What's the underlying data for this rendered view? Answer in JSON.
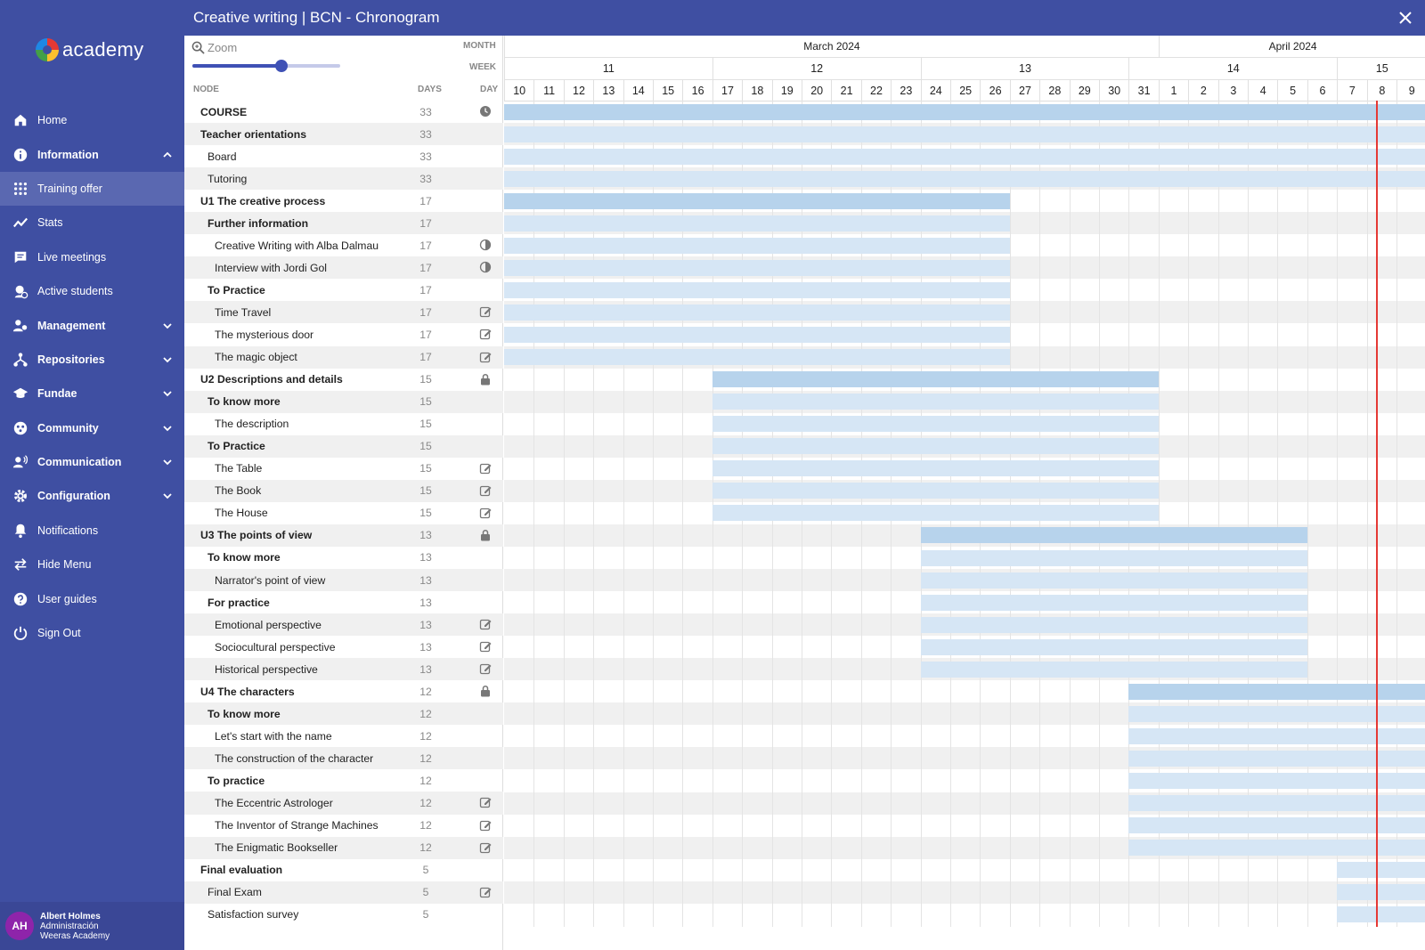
{
  "window": {
    "title": "Creative writing | BCN - Chronogram",
    "close_icon": "close-icon"
  },
  "brand": {
    "name": "academy"
  },
  "sidebar": {
    "items": [
      {
        "label": "Home",
        "icon": "home-icon",
        "bold": false,
        "chevron": ""
      },
      {
        "label": "Information",
        "icon": "info-icon",
        "bold": true,
        "chevron": "up"
      },
      {
        "label": "Training offer",
        "icon": "grid-icon",
        "bold": false,
        "chevron": "",
        "active": true
      },
      {
        "label": "Stats",
        "icon": "chart-icon",
        "bold": false,
        "chevron": ""
      },
      {
        "label": "Live meetings",
        "icon": "chat-icon",
        "bold": false,
        "chevron": ""
      },
      {
        "label": "Active students",
        "icon": "student-icon",
        "bold": false,
        "chevron": ""
      },
      {
        "label": "Management",
        "icon": "people-icon",
        "bold": true,
        "chevron": "down"
      },
      {
        "label": "Repositories",
        "icon": "tree-icon",
        "bold": true,
        "chevron": "down"
      },
      {
        "label": "Fundae",
        "icon": "cap-icon",
        "bold": true,
        "chevron": "down"
      },
      {
        "label": "Community",
        "icon": "community-icon",
        "bold": true,
        "chevron": "down"
      },
      {
        "label": "Communication",
        "icon": "communication-icon",
        "bold": true,
        "chevron": "down"
      },
      {
        "label": "Configuration",
        "icon": "gear-icon",
        "bold": true,
        "chevron": "down"
      },
      {
        "label": "Notifications",
        "icon": "bell-icon",
        "bold": false,
        "chevron": ""
      },
      {
        "label": "Hide Menu",
        "icon": "arrows-icon",
        "bold": false,
        "chevron": ""
      },
      {
        "label": "User guides",
        "icon": "help-icon",
        "bold": false,
        "chevron": ""
      },
      {
        "label": "Sign Out",
        "icon": "power-icon",
        "bold": false,
        "chevron": ""
      }
    ]
  },
  "user": {
    "initials": "AH",
    "name": "Albert Holmes",
    "role": "Administración",
    "org": "Weeras Academy"
  },
  "controls": {
    "zoom_label": "Zoom",
    "zoom_level": 0.6,
    "month_label": "MONTH",
    "week_label": "WEEK",
    "day_label": "DAY",
    "node_label": "NODE",
    "days_label": "DAYS"
  },
  "timeline": {
    "months": [
      {
        "label": "March 2024",
        "days": 22
      },
      {
        "label": "April 2024",
        "days": 9
      }
    ],
    "weeks": [
      {
        "label": "11",
        "days": 7
      },
      {
        "label": "12",
        "days": 7
      },
      {
        "label": "13",
        "days": 7
      },
      {
        "label": "14",
        "days": 7
      },
      {
        "label": "15",
        "days": 3
      }
    ],
    "days": [
      "10",
      "11",
      "12",
      "13",
      "14",
      "15",
      "16",
      "17",
      "18",
      "19",
      "20",
      "21",
      "22",
      "23",
      "24",
      "25",
      "26",
      "27",
      "28",
      "29",
      "30",
      "31",
      "1",
      "2",
      "3",
      "4",
      "5",
      "6",
      "7",
      "8",
      "9"
    ],
    "today": "2024-04-08"
  },
  "rows": [
    {
      "name": "COURSE",
      "days": "33",
      "level": 0,
      "bold": true,
      "icon": "clock-icon",
      "start": "2024-03-10",
      "end": "2024-04-11",
      "main": true
    },
    {
      "name": "Teacher orientations",
      "days": "33",
      "level": 0,
      "bold": true,
      "icon": "",
      "start": "2024-03-10",
      "end": "2024-04-11",
      "main": false
    },
    {
      "name": "Board",
      "days": "33",
      "level": 1,
      "bold": false,
      "icon": "",
      "start": "2024-03-10",
      "end": "2024-04-11",
      "main": false
    },
    {
      "name": "Tutoring",
      "days": "33",
      "level": 1,
      "bold": false,
      "icon": "",
      "start": "2024-03-10",
      "end": "2024-04-11",
      "main": false
    },
    {
      "name": "U1 The creative process",
      "days": "17",
      "level": 0,
      "bold": true,
      "icon": "",
      "start": "2024-03-10",
      "end": "2024-03-26",
      "main": true
    },
    {
      "name": "Further information",
      "days": "17",
      "level": 1,
      "bold": true,
      "icon": "",
      "start": "2024-03-10",
      "end": "2024-03-26",
      "main": false
    },
    {
      "name": "Creative Writing with Alba Dalmau",
      "days": "17",
      "level": 2,
      "bold": false,
      "icon": "progress-icon",
      "start": "2024-03-10",
      "end": "2024-03-26",
      "main": false
    },
    {
      "name": "Interview with Jordi Gol",
      "days": "17",
      "level": 2,
      "bold": false,
      "icon": "progress-icon",
      "start": "2024-03-10",
      "end": "2024-03-26",
      "main": false
    },
    {
      "name": "To Practice",
      "days": "17",
      "level": 1,
      "bold": true,
      "icon": "",
      "start": "2024-03-10",
      "end": "2024-03-26",
      "main": false
    },
    {
      "name": "Time Travel",
      "days": "17",
      "level": 2,
      "bold": false,
      "icon": "edit-icon",
      "start": "2024-03-10",
      "end": "2024-03-26",
      "main": false
    },
    {
      "name": "The mysterious door",
      "days": "17",
      "level": 2,
      "bold": false,
      "icon": "edit-icon",
      "start": "2024-03-10",
      "end": "2024-03-26",
      "main": false
    },
    {
      "name": "The magic object",
      "days": "17",
      "level": 2,
      "bold": false,
      "icon": "edit-icon",
      "start": "2024-03-10",
      "end": "2024-03-26",
      "main": false
    },
    {
      "name": "U2 Descriptions and details",
      "days": "15",
      "level": 0,
      "bold": true,
      "icon": "lock-icon",
      "start": "2024-03-17",
      "end": "2024-03-31",
      "main": true
    },
    {
      "name": "To know more",
      "days": "15",
      "level": 1,
      "bold": true,
      "icon": "",
      "start": "2024-03-17",
      "end": "2024-03-31",
      "main": false
    },
    {
      "name": "The description",
      "days": "15",
      "level": 2,
      "bold": false,
      "icon": "",
      "start": "2024-03-17",
      "end": "2024-03-31",
      "main": false
    },
    {
      "name": "To Practice",
      "days": "15",
      "level": 1,
      "bold": true,
      "icon": "",
      "start": "2024-03-17",
      "end": "2024-03-31",
      "main": false
    },
    {
      "name": "The Table",
      "days": "15",
      "level": 2,
      "bold": false,
      "icon": "edit-icon",
      "start": "2024-03-17",
      "end": "2024-03-31",
      "main": false
    },
    {
      "name": "The Book",
      "days": "15",
      "level": 2,
      "bold": false,
      "icon": "edit-icon",
      "start": "2024-03-17",
      "end": "2024-03-31",
      "main": false
    },
    {
      "name": "The House",
      "days": "15",
      "level": 2,
      "bold": false,
      "icon": "edit-icon",
      "start": "2024-03-17",
      "end": "2024-03-31",
      "main": false
    },
    {
      "name": "U3 The points of view",
      "days": "13",
      "level": 0,
      "bold": true,
      "icon": "lock-icon",
      "start": "2024-03-24",
      "end": "2024-04-05",
      "main": true
    },
    {
      "name": "To know more",
      "days": "13",
      "level": 1,
      "bold": true,
      "icon": "",
      "start": "2024-03-24",
      "end": "2024-04-05",
      "main": false
    },
    {
      "name": "Narrator's point of view",
      "days": "13",
      "level": 2,
      "bold": false,
      "icon": "",
      "start": "2024-03-24",
      "end": "2024-04-05",
      "main": false
    },
    {
      "name": "For practice",
      "days": "13",
      "level": 1,
      "bold": true,
      "icon": "",
      "start": "2024-03-24",
      "end": "2024-04-05",
      "main": false
    },
    {
      "name": "Emotional perspective",
      "days": "13",
      "level": 2,
      "bold": false,
      "icon": "edit-icon",
      "start": "2024-03-24",
      "end": "2024-04-05",
      "main": false
    },
    {
      "name": "Sociocultural perspective",
      "days": "13",
      "level": 2,
      "bold": false,
      "icon": "edit-icon",
      "start": "2024-03-24",
      "end": "2024-04-05",
      "main": false
    },
    {
      "name": "Historical perspective",
      "days": "13",
      "level": 2,
      "bold": false,
      "icon": "edit-icon",
      "start": "2024-03-24",
      "end": "2024-04-05",
      "main": false
    },
    {
      "name": "U4 The characters",
      "days": "12",
      "level": 0,
      "bold": true,
      "icon": "lock-icon",
      "start": "2024-03-31",
      "end": "2024-04-11",
      "main": true
    },
    {
      "name": "To know more",
      "days": "12",
      "level": 1,
      "bold": true,
      "icon": "",
      "start": "2024-03-31",
      "end": "2024-04-11",
      "main": false
    },
    {
      "name": "Let's start with the name",
      "days": "12",
      "level": 2,
      "bold": false,
      "icon": "",
      "start": "2024-03-31",
      "end": "2024-04-11",
      "main": false
    },
    {
      "name": "The construction of the character",
      "days": "12",
      "level": 2,
      "bold": false,
      "icon": "",
      "start": "2024-03-31",
      "end": "2024-04-11",
      "main": false
    },
    {
      "name": "To practice",
      "days": "12",
      "level": 1,
      "bold": true,
      "icon": "",
      "start": "2024-03-31",
      "end": "2024-04-11",
      "main": false
    },
    {
      "name": "The Eccentric Astrologer",
      "days": "12",
      "level": 2,
      "bold": false,
      "icon": "edit-icon",
      "start": "2024-03-31",
      "end": "2024-04-11",
      "main": false
    },
    {
      "name": "The Inventor of Strange Machines",
      "days": "12",
      "level": 2,
      "bold": false,
      "icon": "edit-icon",
      "start": "2024-03-31",
      "end": "2024-04-11",
      "main": false
    },
    {
      "name": "The Enigmatic Bookseller",
      "days": "12",
      "level": 2,
      "bold": false,
      "icon": "edit-icon",
      "start": "2024-03-31",
      "end": "2024-04-11",
      "main": false
    },
    {
      "name": "Final evaluation",
      "days": "5",
      "level": 0,
      "bold": true,
      "icon": "",
      "start": "2024-04-07",
      "end": "2024-04-11",
      "main": false
    },
    {
      "name": "Final Exam",
      "days": "5",
      "level": 1,
      "bold": false,
      "icon": "edit-icon",
      "start": "2024-04-07",
      "end": "2024-04-11",
      "main": false
    },
    {
      "name": "Satisfaction survey",
      "days": "5",
      "level": 1,
      "bold": false,
      "icon": "",
      "start": "2024-04-07",
      "end": "2024-04-11",
      "main": false
    }
  ]
}
